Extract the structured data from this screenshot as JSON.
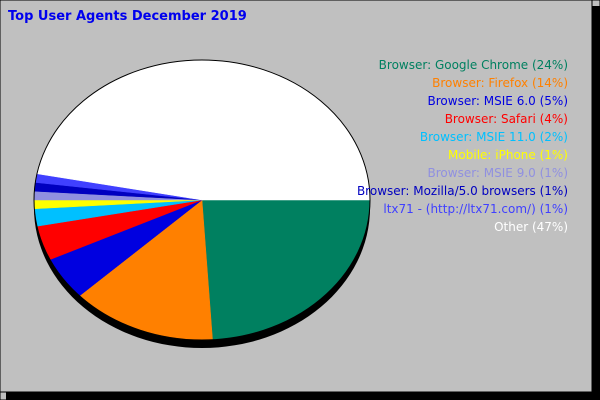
{
  "chart_data": {
    "type": "pie",
    "title": "Top User Agents December 2019",
    "start_angle_deg": 0,
    "direction": "clockwise",
    "slices": [
      {
        "label": "Browser: Google Chrome",
        "value": 24,
        "legend": "Browser: Google Chrome (24%)",
        "color": "#008060"
      },
      {
        "label": "Browser: Firefox",
        "value": 14,
        "legend": "Browser: Firefox (14%)",
        "color": "#ff8000"
      },
      {
        "label": "Browser: MSIE 6.0",
        "value": 5,
        "legend": "Browser: MSIE 6.0 (5%)",
        "color": "#0000e0"
      },
      {
        "label": "Browser: Safari",
        "value": 4,
        "legend": "Browser: Safari (4%)",
        "color": "#ff0000"
      },
      {
        "label": "Browser: MSIE 11.0",
        "value": 2,
        "legend": "Browser: MSIE 11.0 (2%)",
        "color": "#00c0ff"
      },
      {
        "label": "Mobile: iPhone",
        "value": 1,
        "legend": "Mobile: iPhone (1%)",
        "color": "#ffff00"
      },
      {
        "label": "Browser: MSIE 9.0",
        "value": 1,
        "legend": "Browser: MSIE 9.0 (1%)",
        "color": "#9090e0"
      },
      {
        "label": "Browser: Mozilla/5.0 browsers",
        "value": 1,
        "legend": "Browser: Mozilla/5.0 browsers (1%)",
        "color": "#0000c0"
      },
      {
        "label": "ltx71 - (http://ltx71.com/)",
        "value": 1,
        "legend": "ltx71 - (http://ltx71.com/) (1%)",
        "color": "#4040ff"
      },
      {
        "label": "Other",
        "value": 47,
        "legend": "Other (47%)",
        "color": "#ffffff"
      }
    ],
    "legend_placement": "right",
    "background_color": "#c0c0c0",
    "title_color": "#0000ee",
    "legend_colors": [
      "#008060",
      "#ff8000",
      "#0000e0",
      "#ff0000",
      "#00c0ff",
      "#ffff00",
      "#9090e0",
      "#0000c0",
      "#4040ff",
      "#ffffff"
    ]
  }
}
